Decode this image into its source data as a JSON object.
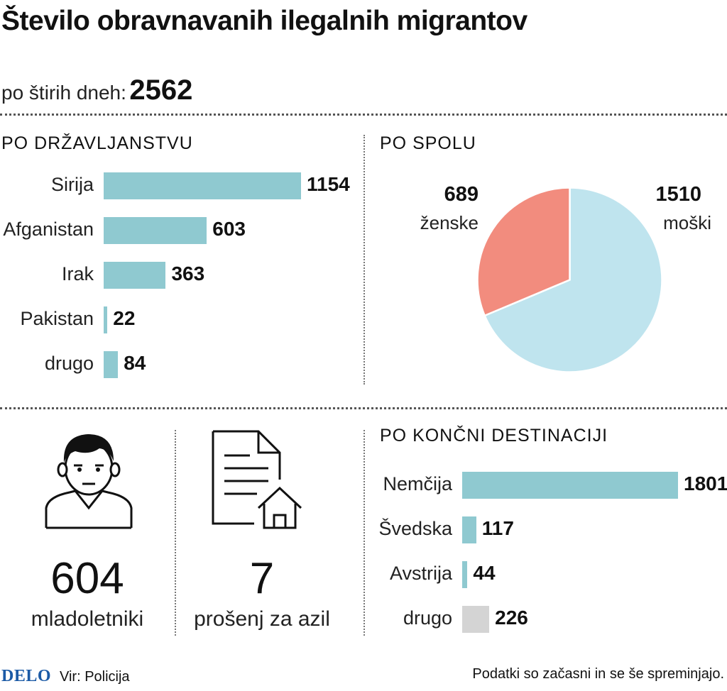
{
  "header": {
    "title": "Število obravnavanih ilegalnih migrantov",
    "total_label": "po štirih dneh:",
    "total_value": "2562"
  },
  "colors": {
    "bar": "#8fc9d0",
    "bar_other": "#d4d4d4",
    "pie_female": "#f28c7e",
    "pie_male": "#bfe4ee"
  },
  "chart_data": [
    {
      "type": "bar",
      "title": "PO DRŽAVLJANSTVU",
      "categories": [
        "Sirija",
        "Afganistan",
        "Irak",
        "Pakistan",
        "drugo"
      ],
      "values": [
        1154,
        603,
        363,
        22,
        84
      ],
      "value_labels": [
        "1154",
        "603",
        "363",
        "22",
        "84"
      ],
      "orientation": "horizontal"
    },
    {
      "type": "pie",
      "title": "PO SPOLU",
      "slices": [
        {
          "label": "ženske",
          "value": 689,
          "value_label": "689"
        },
        {
          "label": "moški",
          "value": 1510,
          "value_label": "1510"
        }
      ]
    },
    {
      "type": "bar",
      "title": "PO KONČNI DESTINACIJI",
      "categories": [
        "Nemčija",
        "Švedska",
        "Avstrija",
        "drugo"
      ],
      "values": [
        1801,
        117,
        44,
        226
      ],
      "value_labels": [
        "1801",
        "117",
        "44",
        "226"
      ],
      "orientation": "horizontal"
    }
  ],
  "stats": {
    "minors": {
      "value": "604",
      "label": "mladoletniki",
      "icon": "young-person-icon"
    },
    "asylum": {
      "value": "7",
      "label": "prošenj za azil",
      "icon": "document-house-icon"
    }
  },
  "footer": {
    "logo": "DELO",
    "source": "Vir: Policija",
    "note": "Podatki so začasni in se še spreminjajo."
  }
}
